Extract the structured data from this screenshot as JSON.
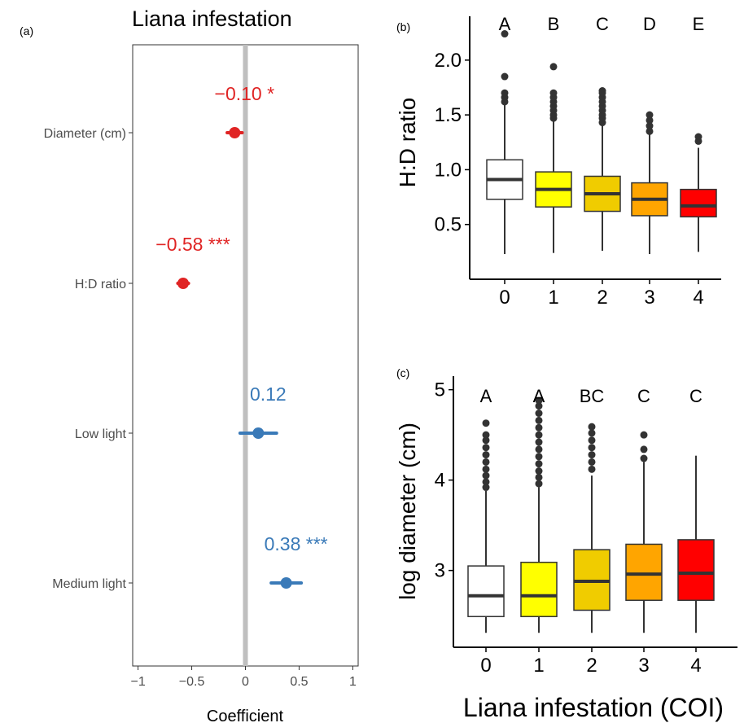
{
  "panel_labels": {
    "a": "(a)",
    "b": "(b)",
    "c": "(c)"
  },
  "colors": {
    "negative": "#e02424",
    "positive": "#3a7ab8",
    "zero_line": "#bfbfbf",
    "box_fills": [
      "#ffffff",
      "#ffff00",
      "#f0cc00",
      "#ffa500",
      "#ff0000"
    ],
    "outlier": "#333333",
    "axis": "#000000"
  },
  "chart_data": [
    {
      "type": "scatter",
      "subtype": "coefficient-plot",
      "title": "Liana infestation",
      "xlabel": "Coefficient",
      "ylabel": "",
      "xlim": [
        -1.05,
        1.05
      ],
      "xticks": [
        "-1",
        "-0.5",
        "0",
        "0.5",
        "1"
      ],
      "grid": false,
      "vertical_reference_line": 0,
      "rows": [
        {
          "term": "Diameter (cm)",
          "estimate": -0.1,
          "ci": [
            -0.17,
            -0.03
          ],
          "label": "−0.10 *",
          "color": "#e02424"
        },
        {
          "term": "H:D ratio",
          "estimate": -0.58,
          "ci": [
            -0.63,
            -0.53
          ],
          "label": "−0.58 ***",
          "color": "#e02424"
        },
        {
          "term": "Low light",
          "estimate": 0.12,
          "ci": [
            -0.05,
            0.29
          ],
          "label": "0.12",
          "color": "#3a7ab8"
        },
        {
          "term": "Medium light",
          "estimate": 0.38,
          "ci": [
            0.24,
            0.52
          ],
          "label": "0.38 ***",
          "color": "#3a7ab8"
        }
      ]
    },
    {
      "type": "box",
      "xlabel": "",
      "ylabel": "H:D ratio",
      "ylim": [
        0.0,
        2.4
      ],
      "yticks": [
        "0.5",
        "1.0",
        "1.5",
        "2.0"
      ],
      "categories": [
        "0",
        "1",
        "2",
        "3",
        "4"
      ],
      "significance_letters": [
        "A",
        "B",
        "C",
        "D",
        "E"
      ],
      "boxes": [
        {
          "whisker_low": 0.23,
          "q1": 0.73,
          "median": 0.91,
          "q3": 1.09,
          "whisker_high": 1.6,
          "outliers": [
            1.62,
            1.66,
            1.7,
            1.85,
            2.24
          ]
        },
        {
          "whisker_low": 0.24,
          "q1": 0.66,
          "median": 0.82,
          "q3": 0.98,
          "whisker_high": 1.44,
          "outliers": [
            1.47,
            1.5,
            1.54,
            1.58,
            1.62,
            1.66,
            1.7,
            1.94
          ]
        },
        {
          "whisker_low": 0.26,
          "q1": 0.62,
          "median": 0.78,
          "q3": 0.94,
          "whisker_high": 1.41,
          "outliers": [
            1.43,
            1.47,
            1.5,
            1.54,
            1.58,
            1.62,
            1.66,
            1.7,
            1.72
          ]
        },
        {
          "whisker_low": 0.23,
          "q1": 0.58,
          "median": 0.73,
          "q3": 0.88,
          "whisker_high": 1.32,
          "outliers": [
            1.35,
            1.4,
            1.45,
            1.5
          ]
        },
        {
          "whisker_low": 0.25,
          "q1": 0.57,
          "median": 0.67,
          "q3": 0.82,
          "whisker_high": 1.2,
          "outliers": [
            1.26,
            1.3
          ]
        }
      ]
    },
    {
      "type": "box",
      "xlabel": "Liana infestation (COI)",
      "ylabel": "log diameter (cm)",
      "ylim": [
        2.15,
        5.15
      ],
      "yticks": [
        "3",
        "4",
        "5"
      ],
      "categories": [
        "0",
        "1",
        "2",
        "3",
        "4"
      ],
      "significance_letters": [
        "A",
        "A",
        "BC",
        "C",
        "C"
      ],
      "boxes": [
        {
          "whisker_low": 2.31,
          "q1": 2.49,
          "median": 2.72,
          "q3": 3.05,
          "whisker_high": 3.88,
          "outliers": [
            3.92,
            3.98,
            4.05,
            4.12,
            4.2,
            4.28,
            4.36,
            4.44,
            4.5,
            4.63
          ]
        },
        {
          "whisker_low": 2.31,
          "q1": 2.49,
          "median": 2.72,
          "q3": 3.09,
          "whisker_high": 3.92,
          "outliers": [
            3.96,
            4.03,
            4.1,
            4.18,
            4.26,
            4.34,
            4.42,
            4.5,
            4.58,
            4.66,
            4.74,
            4.82,
            4.88
          ]
        },
        {
          "whisker_low": 2.31,
          "q1": 2.56,
          "median": 2.88,
          "q3": 3.23,
          "whisker_high": 4.05,
          "outliers": [
            4.12,
            4.2,
            4.28,
            4.36,
            4.44,
            4.52,
            4.59
          ]
        },
        {
          "whisker_low": 2.31,
          "q1": 2.67,
          "median": 2.96,
          "q3": 3.29,
          "whisker_high": 4.2,
          "outliers": [
            4.24,
            4.34,
            4.5
          ]
        },
        {
          "whisker_low": 2.31,
          "q1": 2.67,
          "median": 2.97,
          "q3": 3.34,
          "whisker_high": 4.27,
          "outliers": []
        }
      ]
    }
  ]
}
